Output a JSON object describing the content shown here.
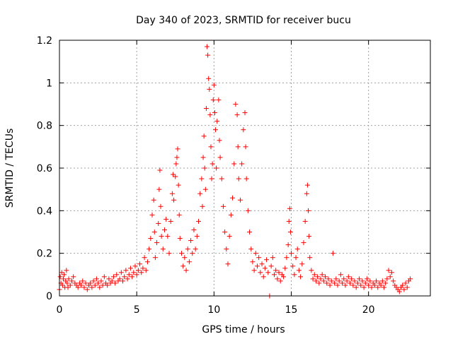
{
  "chart_data": {
    "type": "scatter",
    "title": "Day 340 of 2023, SRMTID for receiver bucu",
    "xlabel": "GPS time / hours",
    "ylabel": "SRMTID / TECUs",
    "xlim": [
      0,
      24
    ],
    "ylim": [
      0,
      1.2
    ],
    "xticks": [
      0,
      5,
      10,
      15,
      20
    ],
    "xtick_labels": [
      "0",
      "5",
      "10",
      "15",
      "20"
    ],
    "yticks": [
      0,
      0.2,
      0.4,
      0.6,
      0.8,
      1.0,
      1.2
    ],
    "ytick_labels": [
      "0",
      "0.2",
      "0.4",
      "0.6",
      "0.8",
      "1",
      "1.2"
    ],
    "grid": true,
    "marker": "+",
    "series_color": "#ff0000",
    "series": [
      {
        "name": "SRMTID",
        "points": [
          [
            0.0,
            0.03
          ],
          [
            0.05,
            0.09
          ],
          [
            0.1,
            0.06
          ],
          [
            0.15,
            0.11
          ],
          [
            0.2,
            0.05
          ],
          [
            0.25,
            0.08
          ],
          [
            0.3,
            0.1
          ],
          [
            0.35,
            0.04
          ],
          [
            0.4,
            0.07
          ],
          [
            0.45,
            0.12
          ],
          [
            0.5,
            0.06
          ],
          [
            0.55,
            0.04
          ],
          [
            0.6,
            0.08
          ],
          [
            0.7,
            0.05
          ],
          [
            0.8,
            0.07
          ],
          [
            0.9,
            0.09
          ],
          [
            1.0,
            0.06
          ],
          [
            1.1,
            0.05
          ],
          [
            1.2,
            0.04
          ],
          [
            1.3,
            0.06
          ],
          [
            1.4,
            0.05
          ],
          [
            1.5,
            0.07
          ],
          [
            1.6,
            0.04
          ],
          [
            1.7,
            0.06
          ],
          [
            1.8,
            0.03
          ],
          [
            1.9,
            0.05
          ],
          [
            2.0,
            0.06
          ],
          [
            2.1,
            0.04
          ],
          [
            2.2,
            0.07
          ],
          [
            2.3,
            0.05
          ],
          [
            2.4,
            0.08
          ],
          [
            2.5,
            0.06
          ],
          [
            2.6,
            0.04
          ],
          [
            2.7,
            0.07
          ],
          [
            2.8,
            0.05
          ],
          [
            2.9,
            0.09
          ],
          [
            3.0,
            0.06
          ],
          [
            3.1,
            0.05
          ],
          [
            3.2,
            0.08
          ],
          [
            3.3,
            0.06
          ],
          [
            3.4,
            0.07
          ],
          [
            3.5,
            0.09
          ],
          [
            3.6,
            0.06
          ],
          [
            3.7,
            0.1
          ],
          [
            3.8,
            0.07
          ],
          [
            3.9,
            0.08
          ],
          [
            4.0,
            0.11
          ],
          [
            4.1,
            0.07
          ],
          [
            4.2,
            0.09
          ],
          [
            4.3,
            0.12
          ],
          [
            4.4,
            0.08
          ],
          [
            4.5,
            0.1
          ],
          [
            4.6,
            0.13
          ],
          [
            4.7,
            0.09
          ],
          [
            4.8,
            0.11
          ],
          [
            4.9,
            0.14
          ],
          [
            5.0,
            0.1
          ],
          [
            5.1,
            0.12
          ],
          [
            5.2,
            0.15
          ],
          [
            5.3,
            0.11
          ],
          [
            5.4,
            0.13
          ],
          [
            5.5,
            0.18
          ],
          [
            5.6,
            0.12
          ],
          [
            5.7,
            0.16
          ],
          [
            5.8,
            0.22
          ],
          [
            5.9,
            0.27
          ],
          [
            6.0,
            0.38
          ],
          [
            6.1,
            0.45
          ],
          [
            6.15,
            0.3
          ],
          [
            6.2,
            0.18
          ],
          [
            6.3,
            0.25
          ],
          [
            6.4,
            0.34
          ],
          [
            6.45,
            0.5
          ],
          [
            6.5,
            0.59
          ],
          [
            6.55,
            0.42
          ],
          [
            6.6,
            0.28
          ],
          [
            6.7,
            0.22
          ],
          [
            6.8,
            0.31
          ],
          [
            6.9,
            0.36
          ],
          [
            7.0,
            0.28
          ],
          [
            7.1,
            0.2
          ],
          [
            7.2,
            0.35
          ],
          [
            7.3,
            0.48
          ],
          [
            7.35,
            0.57
          ],
          [
            7.4,
            0.45
          ],
          [
            7.5,
            0.56
          ],
          [
            7.55,
            0.62
          ],
          [
            7.6,
            0.65
          ],
          [
            7.65,
            0.69
          ],
          [
            7.7,
            0.52
          ],
          [
            7.75,
            0.38
          ],
          [
            7.8,
            0.27
          ],
          [
            7.9,
            0.2
          ],
          [
            8.0,
            0.14
          ],
          [
            8.1,
            0.18
          ],
          [
            8.2,
            0.12
          ],
          [
            8.3,
            0.22
          ],
          [
            8.4,
            0.16
          ],
          [
            8.5,
            0.26
          ],
          [
            8.6,
            0.2
          ],
          [
            8.7,
            0.31
          ],
          [
            8.8,
            0.22
          ],
          [
            8.9,
            0.28
          ],
          [
            9.0,
            0.35
          ],
          [
            9.1,
            0.48
          ],
          [
            9.2,
            0.55
          ],
          [
            9.25,
            0.42
          ],
          [
            9.3,
            0.65
          ],
          [
            9.35,
            0.75
          ],
          [
            9.4,
            0.6
          ],
          [
            9.45,
            0.5
          ],
          [
            9.5,
            0.88
          ],
          [
            9.55,
            1.17
          ],
          [
            9.6,
            1.13
          ],
          [
            9.65,
            1.02
          ],
          [
            9.7,
            0.97
          ],
          [
            9.75,
            0.85
          ],
          [
            9.8,
            0.7
          ],
          [
            9.85,
            0.55
          ],
          [
            9.9,
            0.62
          ],
          [
            9.95,
            0.92
          ],
          [
            10.0,
            0.99
          ],
          [
            10.05,
            0.86
          ],
          [
            10.1,
            0.78
          ],
          [
            10.15,
            0.6
          ],
          [
            10.2,
            0.82
          ],
          [
            10.3,
            0.92
          ],
          [
            10.35,
            0.73
          ],
          [
            10.4,
            0.65
          ],
          [
            10.5,
            0.55
          ],
          [
            10.6,
            0.42
          ],
          [
            10.7,
            0.3
          ],
          [
            10.8,
            0.22
          ],
          [
            10.9,
            0.15
          ],
          [
            11.0,
            0.28
          ],
          [
            11.1,
            0.38
          ],
          [
            11.2,
            0.46
          ],
          [
            11.3,
            0.62
          ],
          [
            11.4,
            0.9
          ],
          [
            11.5,
            0.85
          ],
          [
            11.55,
            0.7
          ],
          [
            11.6,
            0.55
          ],
          [
            11.7,
            0.45
          ],
          [
            11.8,
            0.62
          ],
          [
            11.9,
            0.78
          ],
          [
            12.0,
            0.86
          ],
          [
            12.05,
            0.7
          ],
          [
            12.1,
            0.55
          ],
          [
            12.2,
            0.4
          ],
          [
            12.3,
            0.3
          ],
          [
            12.4,
            0.22
          ],
          [
            12.5,
            0.16
          ],
          [
            12.6,
            0.12
          ],
          [
            12.7,
            0.2
          ],
          [
            12.8,
            0.14
          ],
          [
            12.9,
            0.18
          ],
          [
            13.0,
            0.11
          ],
          [
            13.1,
            0.15
          ],
          [
            13.2,
            0.09
          ],
          [
            13.3,
            0.13
          ],
          [
            13.4,
            0.17
          ],
          [
            13.5,
            0.11
          ],
          [
            13.6,
            0.0
          ],
          [
            13.7,
            0.14
          ],
          [
            13.8,
            0.18
          ],
          [
            13.9,
            0.1
          ],
          [
            14.0,
            0.12
          ],
          [
            14.1,
            0.08
          ],
          [
            14.2,
            0.11
          ],
          [
            14.3,
            0.07
          ],
          [
            14.4,
            0.1
          ],
          [
            14.5,
            0.09
          ],
          [
            14.6,
            0.13
          ],
          [
            14.7,
            0.18
          ],
          [
            14.8,
            0.24
          ],
          [
            14.85,
            0.35
          ],
          [
            14.9,
            0.41
          ],
          [
            14.95,
            0.3
          ],
          [
            15.0,
            0.2
          ],
          [
            15.1,
            0.14
          ],
          [
            15.2,
            0.1
          ],
          [
            15.3,
            0.18
          ],
          [
            15.4,
            0.22
          ],
          [
            15.5,
            0.12
          ],
          [
            15.6,
            0.09
          ],
          [
            15.7,
            0.15
          ],
          [
            15.8,
            0.25
          ],
          [
            15.9,
            0.35
          ],
          [
            16.0,
            0.48
          ],
          [
            16.05,
            0.52
          ],
          [
            16.1,
            0.4
          ],
          [
            16.15,
            0.28
          ],
          [
            16.2,
            0.18
          ],
          [
            16.3,
            0.12
          ],
          [
            16.4,
            0.08
          ],
          [
            16.5,
            0.1
          ],
          [
            16.6,
            0.07
          ],
          [
            16.7,
            0.09
          ],
          [
            16.8,
            0.06
          ],
          [
            16.9,
            0.08
          ],
          [
            17.0,
            0.1
          ],
          [
            17.1,
            0.07
          ],
          [
            17.2,
            0.09
          ],
          [
            17.3,
            0.06
          ],
          [
            17.4,
            0.08
          ],
          [
            17.5,
            0.05
          ],
          [
            17.6,
            0.07
          ],
          [
            17.7,
            0.2
          ],
          [
            17.8,
            0.06
          ],
          [
            17.9,
            0.08
          ],
          [
            18.0,
            0.05
          ],
          [
            18.1,
            0.07
          ],
          [
            18.2,
            0.1
          ],
          [
            18.3,
            0.06
          ],
          [
            18.4,
            0.08
          ],
          [
            18.5,
            0.05
          ],
          [
            18.6,
            0.07
          ],
          [
            18.7,
            0.09
          ],
          [
            18.8,
            0.06
          ],
          [
            18.9,
            0.08
          ],
          [
            19.0,
            0.05
          ],
          [
            19.1,
            0.07
          ],
          [
            19.2,
            0.04
          ],
          [
            19.3,
            0.06
          ],
          [
            19.4,
            0.08
          ],
          [
            19.5,
            0.05
          ],
          [
            19.6,
            0.07
          ],
          [
            19.7,
            0.04
          ],
          [
            19.8,
            0.06
          ],
          [
            19.9,
            0.08
          ],
          [
            20.0,
            0.05
          ],
          [
            20.1,
            0.07
          ],
          [
            20.2,
            0.04
          ],
          [
            20.3,
            0.06
          ],
          [
            20.4,
            0.05
          ],
          [
            20.5,
            0.07
          ],
          [
            20.6,
            0.04
          ],
          [
            20.7,
            0.06
          ],
          [
            20.8,
            0.05
          ],
          [
            20.9,
            0.07
          ],
          [
            21.0,
            0.04
          ],
          [
            21.1,
            0.06
          ],
          [
            21.2,
            0.08
          ],
          [
            21.3,
            0.12
          ],
          [
            21.4,
            0.09
          ],
          [
            21.5,
            0.11
          ],
          [
            21.6,
            0.07
          ],
          [
            21.7,
            0.05
          ],
          [
            21.8,
            0.04
          ],
          [
            21.9,
            0.03
          ],
          [
            22.0,
            0.02
          ],
          [
            22.1,
            0.04
          ],
          [
            22.2,
            0.05
          ],
          [
            22.3,
            0.03
          ],
          [
            22.4,
            0.06
          ],
          [
            22.5,
            0.04
          ],
          [
            22.6,
            0.07
          ],
          [
            22.7,
            0.08
          ]
        ]
      }
    ]
  }
}
